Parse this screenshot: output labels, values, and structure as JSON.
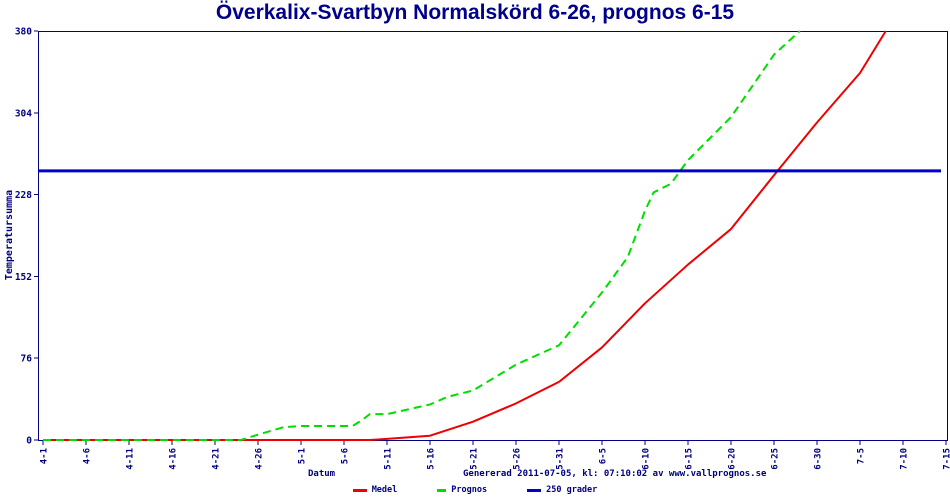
{
  "title": "Överkalix-Svartbyn Normalskörd 6-26, prognos 6-15",
  "footer": {
    "x_axis_title": "Datum",
    "generated_text": "Genererad 2011-07-05, kl: 07:10:02 av www.vallprognos.se"
  },
  "colors": {
    "title": "#00008B",
    "axis": "#000080",
    "tick_label": "#000080",
    "background": "#FFFFFF",
    "medel": "#EE0000",
    "prognos": "#00DD00",
    "threshold": "#0000CC"
  },
  "chart_data": {
    "type": "line",
    "title": "Överkalix-Svartbyn Normalskörd 6-26, prognos 6-15",
    "xlabel": "Datum",
    "ylabel": "Temperatursumma",
    "ylim": [
      0,
      380
    ],
    "y_ticks": [
      0,
      76,
      152,
      228,
      304,
      380
    ],
    "x_ticks": [
      "4-1",
      "4-6",
      "4-11",
      "4-16",
      "4-21",
      "4-26",
      "5-1",
      "5-6",
      "5-11",
      "5-16",
      "5-21",
      "5-26",
      "5-31",
      "6-5",
      "6-10",
      "6-15",
      "6-20",
      "6-25",
      "6-30",
      "7-5",
      "7-10",
      "7-15"
    ],
    "grid": false,
    "legend_position": "bottom",
    "series": [
      {
        "name": "Medel",
        "color": "#EE0000",
        "style": "solid",
        "points": [
          [
            "4-1",
            0
          ],
          [
            "4-11",
            0
          ],
          [
            "4-21",
            0
          ],
          [
            "5-1",
            0
          ],
          [
            "5-9",
            0
          ],
          [
            "5-11",
            1
          ],
          [
            "5-16",
            4
          ],
          [
            "5-21",
            17
          ],
          [
            "5-26",
            34
          ],
          [
            "5-31",
            54
          ],
          [
            "6-5",
            86
          ],
          [
            "6-10",
            127
          ],
          [
            "6-15",
            163
          ],
          [
            "6-20",
            196
          ],
          [
            "6-25",
            246
          ],
          [
            "6-30",
            295
          ],
          [
            "7-5",
            341
          ],
          [
            "7-8",
            380
          ]
        ]
      },
      {
        "name": "Prognos",
        "color": "#00DD00",
        "style": "dashed",
        "points": [
          [
            "4-1",
            0
          ],
          [
            "4-11",
            0
          ],
          [
            "4-24",
            0
          ],
          [
            "4-26",
            5
          ],
          [
            "4-29",
            12
          ],
          [
            "5-1",
            13
          ],
          [
            "5-7",
            13
          ],
          [
            "5-8",
            18
          ],
          [
            "5-9",
            24
          ],
          [
            "5-11",
            24
          ],
          [
            "5-16",
            33
          ],
          [
            "5-18",
            40
          ],
          [
            "5-21",
            46
          ],
          [
            "5-26",
            70
          ],
          [
            "5-31",
            88
          ],
          [
            "6-5",
            137
          ],
          [
            "6-8",
            170
          ],
          [
            "6-10",
            213
          ],
          [
            "6-11",
            230
          ],
          [
            "6-13",
            238
          ],
          [
            "6-15",
            260
          ],
          [
            "6-20",
            300
          ],
          [
            "6-25",
            358
          ],
          [
            "6-28",
            380
          ]
        ]
      },
      {
        "name": "250 grader",
        "color": "#0000CC",
        "style": "solid",
        "threshold_value": 250,
        "full_width": true,
        "points": [
          [
            "4-1",
            250
          ],
          [
            "7-15",
            250
          ]
        ]
      }
    ]
  }
}
